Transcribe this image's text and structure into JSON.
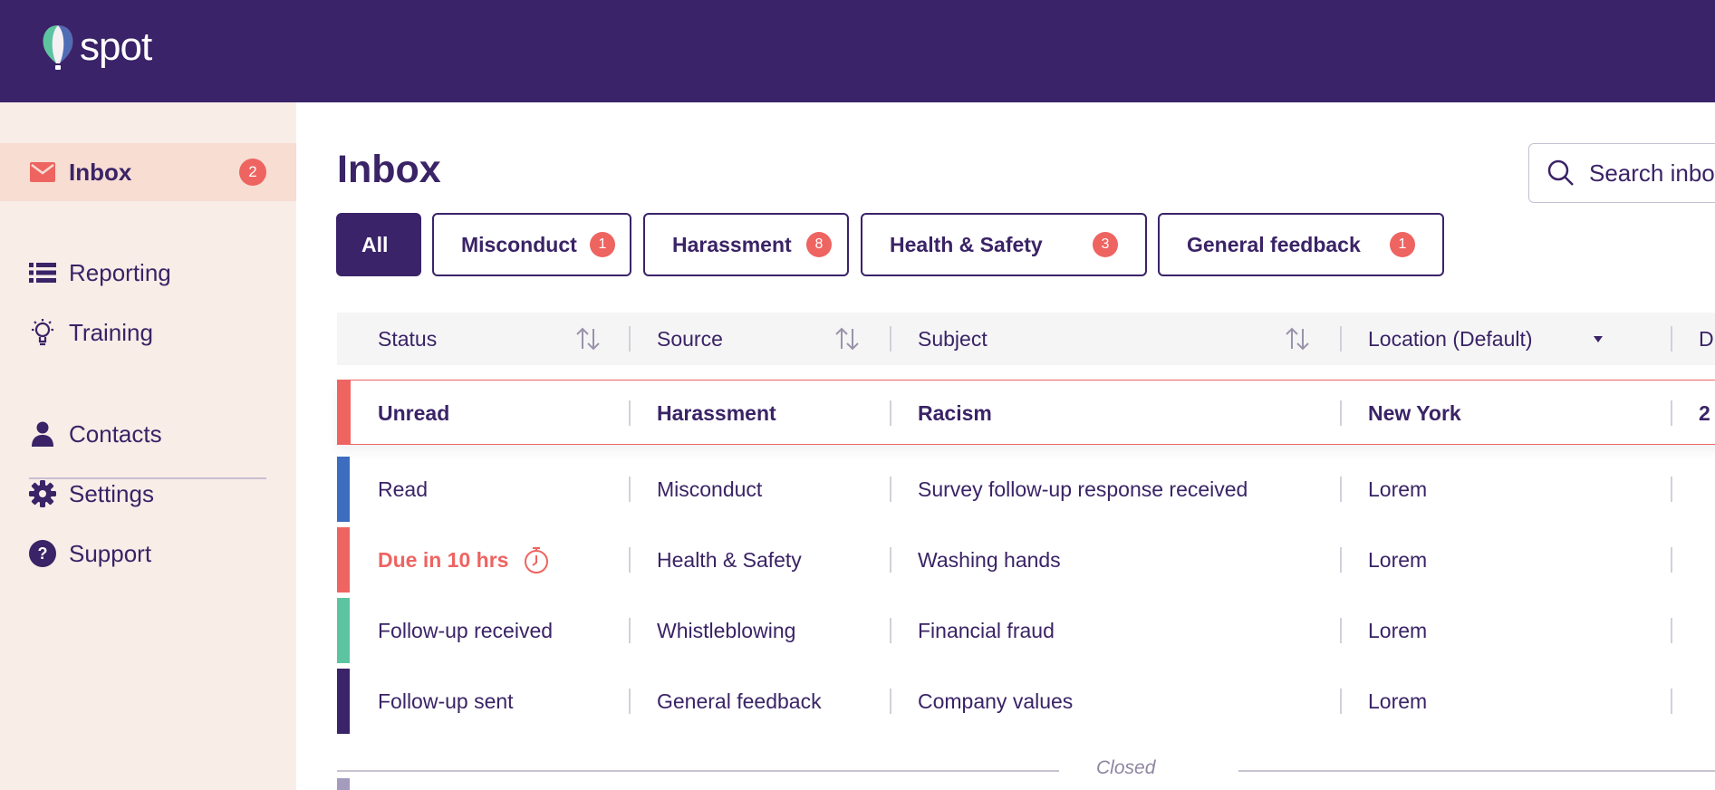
{
  "app": {
    "logo_text": "spot"
  },
  "sidebar": {
    "items": [
      {
        "label": "Inbox",
        "icon": "mail-icon",
        "badge": "2",
        "active": true
      },
      {
        "label": "Reporting",
        "icon": "list-icon"
      },
      {
        "label": "Training",
        "icon": "lightbulb-icon"
      },
      {
        "label": "Contacts",
        "icon": "person-icon"
      },
      {
        "label": "Settings",
        "icon": "gear-icon"
      },
      {
        "label": "Support",
        "icon": "help-icon"
      }
    ]
  },
  "page": {
    "title": "Inbox"
  },
  "search": {
    "placeholder": "Search inbox"
  },
  "tabs": [
    {
      "label": "All",
      "active": true
    },
    {
      "label": "Misconduct",
      "badge": "1"
    },
    {
      "label": "Harassment",
      "badge": "8"
    },
    {
      "label": "Health & Safety",
      "badge": "3"
    },
    {
      "label": "General feedback",
      "badge": "1"
    }
  ],
  "table": {
    "headers": [
      "Status",
      "Source",
      "Subject",
      "Location (Default)",
      "D"
    ],
    "rows": [
      {
        "status": "Unread",
        "source": "Harassment",
        "subject": "Racism",
        "location": "New York",
        "extra": "2",
        "color": "#ee6461"
      },
      {
        "status": "Read",
        "source": "Misconduct",
        "subject": "Survey follow-up response received",
        "location": "Lorem",
        "extra": "",
        "color": "#3d6dbf"
      },
      {
        "status": "Due in 10 hrs",
        "source": "Health & Safety",
        "subject": "Washing hands",
        "location": "Lorem",
        "extra": "",
        "color": "#ee6461"
      },
      {
        "status": "Follow-up received",
        "source": "Whistleblowing",
        "subject": "Financial fraud",
        "location": "Lorem",
        "extra": "",
        "color": "#5cc4a0"
      },
      {
        "status": "Follow-up sent",
        "source": "General feedback",
        "subject": "Company values",
        "location": "Lorem",
        "extra": "",
        "color": "#3a2369"
      }
    ],
    "closed_label": "Closed"
  },
  "colors": {
    "brand": "#3a2369",
    "accent": "#ee6461",
    "sidebar_bg": "#f9ede8"
  }
}
